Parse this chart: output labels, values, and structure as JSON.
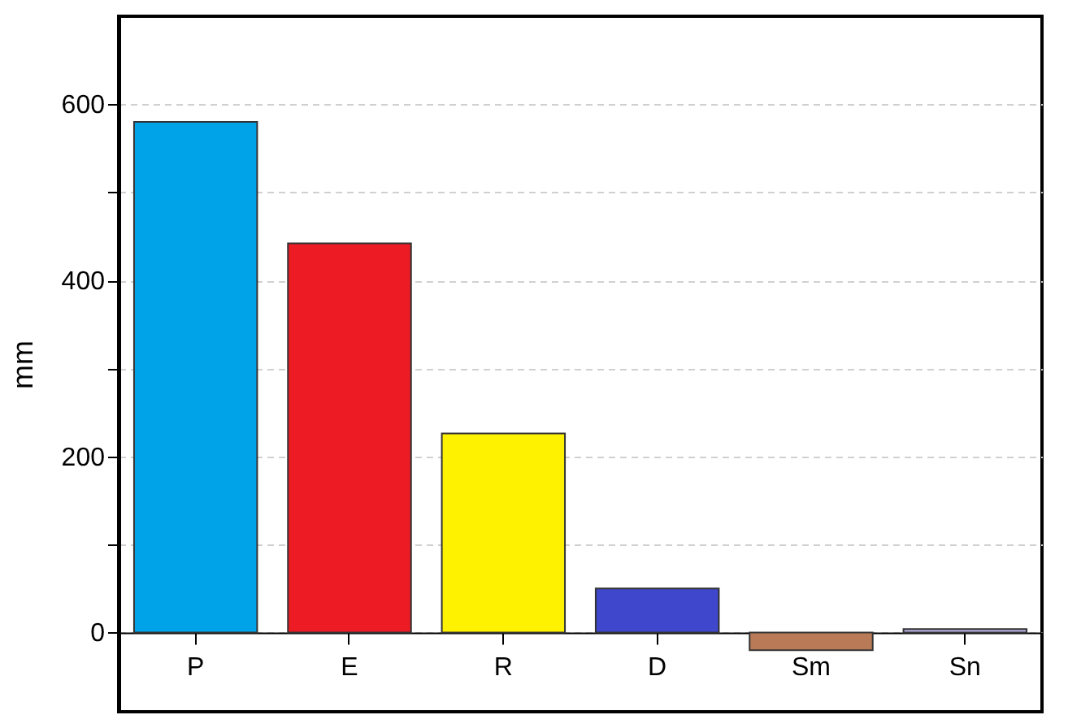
{
  "chart_data": {
    "type": "bar",
    "ylabel": "mm",
    "categories": [
      "P",
      "E",
      "R",
      "D",
      "Sm",
      "Sn"
    ],
    "values": [
      580,
      442,
      226,
      50,
      -20,
      4
    ],
    "colors": [
      "#00a2e8",
      "#ed1c24",
      "#fff200",
      "#3f48cc",
      "#b97a57",
      "#b4aee0"
    ],
    "ylim": [
      -90,
      700
    ],
    "yticks": [
      0,
      {
        "value": 100,
        "label": null
      },
      200,
      {
        "value": 300,
        "label": null
      },
      400,
      {
        "value": 500,
        "label": null
      },
      600
    ],
    "grid": "y"
  }
}
